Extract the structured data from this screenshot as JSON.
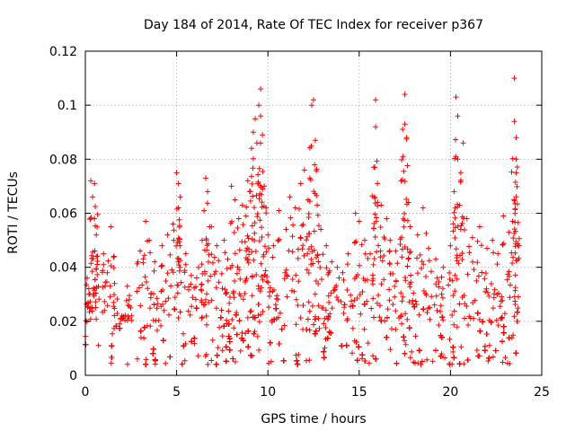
{
  "chart_data": {
    "type": "scatter",
    "title": "Day 184 of 2014, Rate Of TEC Index for receiver p367",
    "xlabel": "GPS time / hours",
    "ylabel": "ROTI / TECUs",
    "xlim": [
      0,
      25
    ],
    "ylim": [
      0,
      0.12
    ],
    "xticks": [
      0,
      5,
      10,
      15,
      20,
      25
    ],
    "yticks": [
      0,
      0.02,
      0.04,
      0.06,
      0.08,
      0.1,
      0.12
    ],
    "ytick_labels": [
      "0",
      "0.02",
      "0.04",
      "0.06",
      "0.08",
      "0.1",
      "0.12"
    ],
    "grid": true,
    "marker": "+",
    "color": "#ff0000",
    "x_extent": [
      0,
      23.8
    ],
    "baseline_band": [
      0.004,
      0.02
    ],
    "series": [
      {
        "name": "ROTI",
        "points": [
          [
            0.1,
            0.036
          ],
          [
            0.3,
            0.072
          ],
          [
            0.4,
            0.066
          ],
          [
            0.5,
            0.071
          ],
          [
            0.5,
            0.058
          ],
          [
            0.6,
            0.052
          ],
          [
            0.6,
            0.044
          ],
          [
            0.2,
            0.03
          ],
          [
            1.0,
            0.045
          ],
          [
            1.2,
            0.038
          ],
          [
            1.4,
            0.055
          ],
          [
            1.6,
            0.034
          ],
          [
            2.0,
            0.022
          ],
          [
            2.3,
            0.033
          ],
          [
            2.4,
            0.028
          ],
          [
            3.0,
            0.046
          ],
          [
            3.3,
            0.057
          ],
          [
            3.5,
            0.05
          ],
          [
            3.8,
            0.042
          ],
          [
            4.2,
            0.048
          ],
          [
            4.5,
            0.052
          ],
          [
            4.8,
            0.056
          ],
          [
            5.0,
            0.075
          ],
          [
            5.1,
            0.071
          ],
          [
            5.2,
            0.066
          ],
          [
            5.1,
            0.062
          ],
          [
            5.5,
            0.045
          ],
          [
            5.8,
            0.037
          ],
          [
            6.2,
            0.04
          ],
          [
            6.4,
            0.05
          ],
          [
            6.6,
            0.073
          ],
          [
            6.7,
            0.068
          ],
          [
            6.5,
            0.061
          ],
          [
            6.9,
            0.055
          ],
          [
            7.2,
            0.048
          ],
          [
            7.6,
            0.05
          ],
          [
            7.8,
            0.043
          ],
          [
            8.0,
            0.07
          ],
          [
            8.2,
            0.065
          ],
          [
            8.4,
            0.058
          ],
          [
            8.6,
            0.063
          ],
          [
            8.8,
            0.059
          ],
          [
            8.9,
            0.072
          ],
          [
            9.0,
            0.068
          ],
          [
            9.1,
            0.084
          ],
          [
            9.2,
            0.09
          ],
          [
            9.3,
            0.095
          ],
          [
            9.4,
            0.086
          ],
          [
            9.5,
            0.1
          ],
          [
            9.6,
            0.106
          ],
          [
            9.6,
            0.096
          ],
          [
            9.7,
            0.089
          ],
          [
            9.8,
            0.07
          ],
          [
            9.9,
            0.062
          ],
          [
            10.0,
            0.052
          ],
          [
            10.3,
            0.048
          ],
          [
            10.6,
            0.061
          ],
          [
            11.0,
            0.054
          ],
          [
            11.2,
            0.066
          ],
          [
            11.5,
            0.062
          ],
          [
            11.8,
            0.071
          ],
          [
            12.0,
            0.076
          ],
          [
            12.2,
            0.065
          ],
          [
            12.3,
            0.073
          ],
          [
            12.4,
            0.1
          ],
          [
            12.5,
            0.102
          ],
          [
            12.6,
            0.087
          ],
          [
            12.7,
            0.063
          ],
          [
            12.9,
            0.054
          ],
          [
            13.2,
            0.048
          ],
          [
            13.5,
            0.042
          ],
          [
            13.8,
            0.04
          ],
          [
            14.1,
            0.038
          ],
          [
            14.4,
            0.045
          ],
          [
            14.8,
            0.06
          ],
          [
            15.0,
            0.057
          ],
          [
            15.3,
            0.05
          ],
          [
            15.6,
            0.045
          ],
          [
            15.8,
            0.077
          ],
          [
            15.9,
            0.092
          ],
          [
            15.9,
            0.102
          ],
          [
            16.0,
            0.071
          ],
          [
            16.2,
            0.063
          ],
          [
            16.5,
            0.058
          ],
          [
            16.7,
            0.05
          ],
          [
            17.0,
            0.046
          ],
          [
            17.3,
            0.072
          ],
          [
            17.4,
            0.081
          ],
          [
            17.5,
            0.093
          ],
          [
            17.5,
            0.104
          ],
          [
            17.6,
            0.088
          ],
          [
            17.7,
            0.064
          ],
          [
            17.8,
            0.055
          ],
          [
            18.2,
            0.052
          ],
          [
            18.5,
            0.062
          ],
          [
            18.8,
            0.047
          ],
          [
            19.2,
            0.043
          ],
          [
            19.6,
            0.04
          ],
          [
            20.0,
            0.048
          ],
          [
            20.2,
            0.068
          ],
          [
            20.3,
            0.103
          ],
          [
            20.4,
            0.096
          ],
          [
            20.4,
            0.08
          ],
          [
            20.5,
            0.063
          ],
          [
            20.7,
            0.086
          ],
          [
            20.9,
            0.058
          ],
          [
            21.2,
            0.051
          ],
          [
            21.6,
            0.055
          ],
          [
            22.0,
            0.047
          ],
          [
            22.3,
            0.05
          ],
          [
            22.6,
            0.045
          ],
          [
            22.9,
            0.059
          ],
          [
            23.2,
            0.053
          ],
          [
            23.4,
            0.057
          ],
          [
            23.5,
            0.11
          ],
          [
            23.5,
            0.094
          ],
          [
            23.6,
            0.088
          ],
          [
            23.6,
            0.08
          ],
          [
            23.6,
            0.075
          ],
          [
            23.7,
            0.048
          ]
        ]
      }
    ]
  }
}
